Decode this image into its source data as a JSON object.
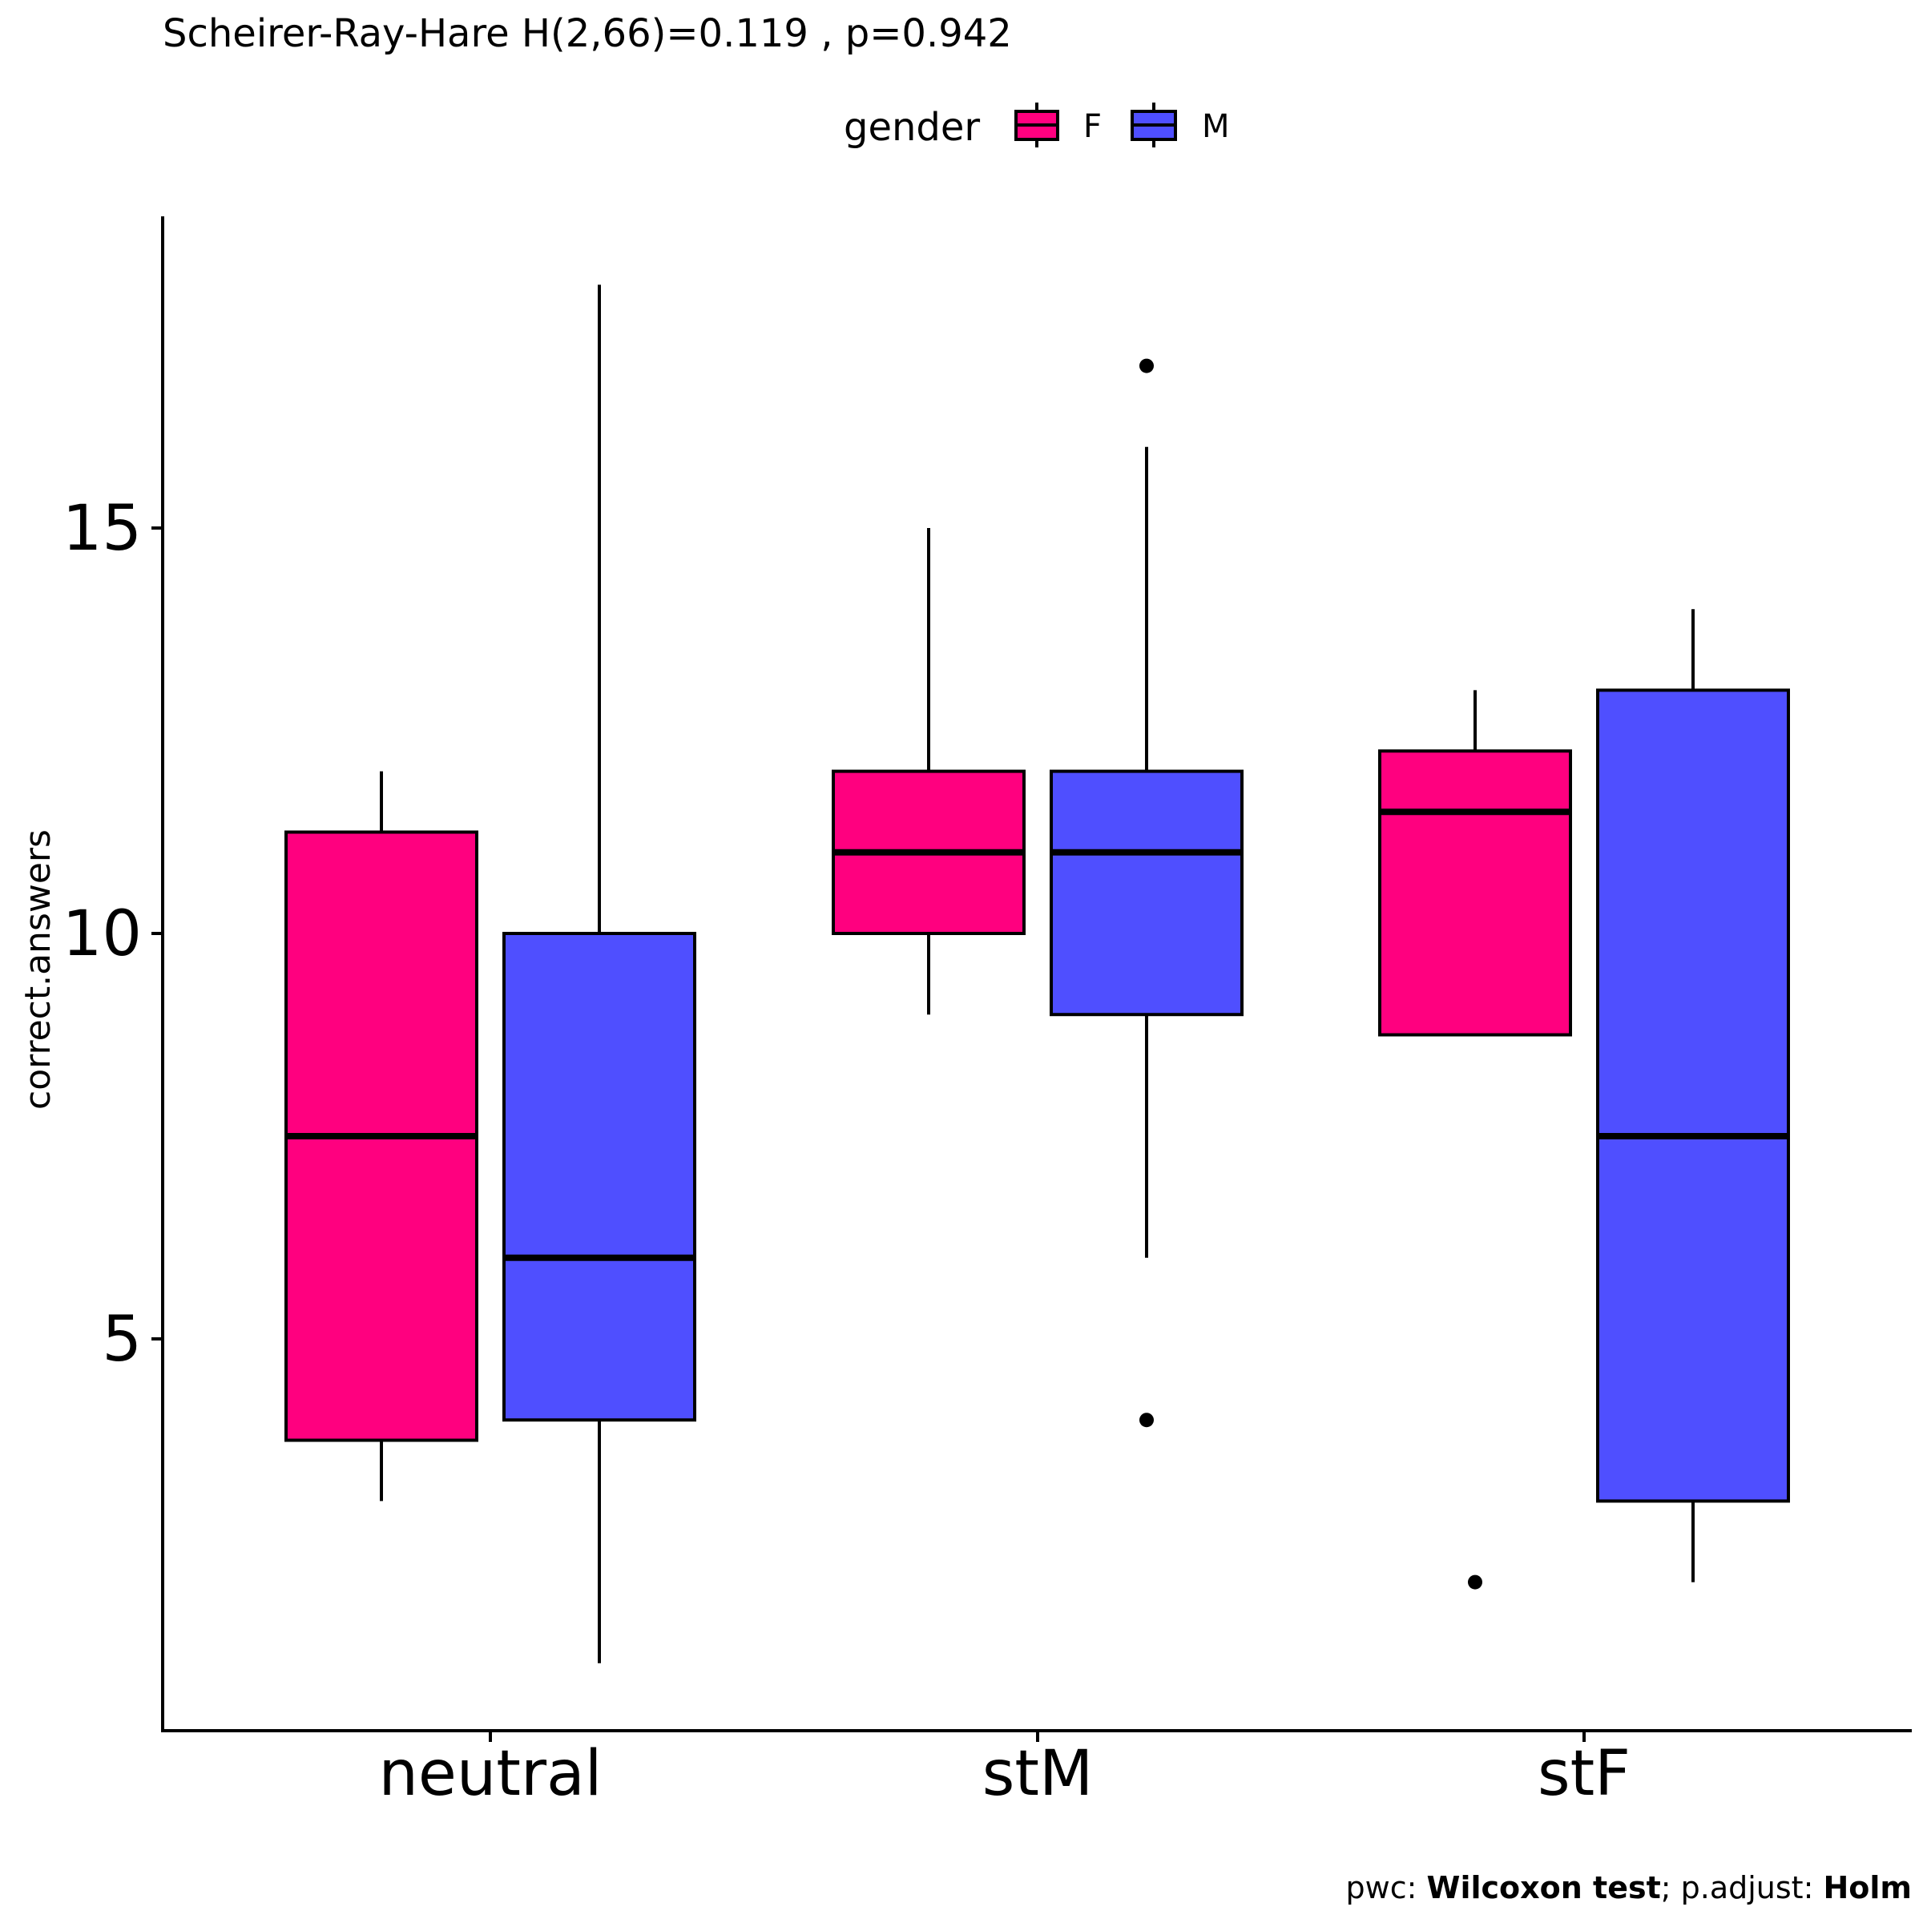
{
  "chart_data": {
    "type": "boxplot",
    "title": "Scheirer-Ray-Hare H(2,66)=0.119 , p=0.942",
    "ylabel": "correct.answers",
    "xlabel": "",
    "categories": [
      "neutral",
      "stM",
      "stF"
    ],
    "legend": {
      "title": "gender",
      "position": "top"
    },
    "ylim": [
      0.8,
      19.5
    ],
    "yticks": [
      5,
      10,
      15
    ],
    "grid": false,
    "series": [
      {
        "name": "F",
        "color": "#FF007F",
        "boxes": [
          {
            "category": "neutral",
            "lower_whisker": 3,
            "q1": 3.75,
            "median": 7.5,
            "q3": 11.25,
            "upper_whisker": 12,
            "outliers": []
          },
          {
            "category": "stM",
            "lower_whisker": 9,
            "q1": 10,
            "median": 11,
            "q3": 12,
            "upper_whisker": 15,
            "outliers": []
          },
          {
            "category": "stF",
            "lower_whisker": 8.75,
            "q1": 8.75,
            "median": 11.5,
            "q3": 12.25,
            "upper_whisker": 13,
            "outliers": [
              2
            ]
          }
        ]
      },
      {
        "name": "M",
        "color": "#4F4FFF",
        "boxes": [
          {
            "category": "neutral",
            "lower_whisker": 1,
            "q1": 4,
            "median": 6,
            "q3": 10,
            "upper_whisker": 18,
            "outliers": []
          },
          {
            "category": "stM",
            "lower_whisker": 6,
            "q1": 9,
            "median": 11,
            "q3": 12,
            "upper_whisker": 16,
            "outliers": [
              17,
              4
            ]
          },
          {
            "category": "stF",
            "lower_whisker": 2,
            "q1": 3,
            "median": 7.5,
            "q3": 13,
            "upper_whisker": 14,
            "outliers": []
          }
        ]
      }
    ],
    "caption": {
      "prefix1": "pwc: ",
      "bold1": "Wilcoxon test",
      "prefix2": "; p.adjust: ",
      "bold2": "Holm"
    }
  }
}
